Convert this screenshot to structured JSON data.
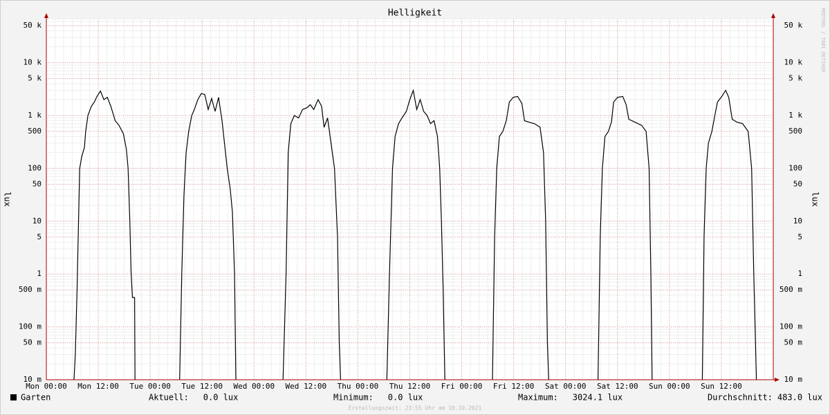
{
  "chart_data": {
    "type": "line",
    "title": "Helligkeit",
    "y_label": "lux",
    "log_scale": true,
    "grid": true,
    "xlim": [
      0,
      168
    ],
    "xticks": [
      {
        "value": 0,
        "label": "Mon 00:00"
      },
      {
        "value": 12,
        "label": "Mon 12:00"
      },
      {
        "value": 24,
        "label": "Tue 00:00"
      },
      {
        "value": 36,
        "label": "Tue 12:00"
      },
      {
        "value": 48,
        "label": "Wed 00:00"
      },
      {
        "value": 60,
        "label": "Wed 12:00"
      },
      {
        "value": 72,
        "label": "Thu 00:00"
      },
      {
        "value": 84,
        "label": "Thu 12:00"
      },
      {
        "value": 96,
        "label": "Fri 00:00"
      },
      {
        "value": 108,
        "label": "Fri 12:00"
      },
      {
        "value": 120,
        "label": "Sat 00:00"
      },
      {
        "value": 132,
        "label": "Sat 12:00"
      },
      {
        "value": 144,
        "label": "Sun 00:00"
      },
      {
        "value": 156,
        "label": "Sun 12:00"
      }
    ],
    "ylim": [
      0.01,
      66000
    ],
    "yticks": [
      {
        "value": 0.01,
        "label": "10 m"
      },
      {
        "value": 0.05,
        "label": "50 m"
      },
      {
        "value": 0.1,
        "label": "100 m"
      },
      {
        "value": 0.5,
        "label": "500 m"
      },
      1,
      5,
      10,
      50,
      100,
      500,
      {
        "value": 1000,
        "label": "1 k"
      },
      {
        "value": 5000,
        "label": "5 k"
      },
      {
        "value": 10000,
        "label": "10 k"
      },
      {
        "value": 50000,
        "label": "50 k"
      }
    ],
    "x": [
      6.4,
      6.7,
      7.1,
      7.7,
      8.2,
      8.8,
      9.1,
      9.6,
      10.4,
      11.1,
      11.7,
      12.5,
      13.3,
      14.1,
      14.9,
      15.9,
      16.8,
      17.8,
      18.5,
      18.9,
      19.3,
      19.6,
      19.9,
      20.4,
      20.5,
      24,
      30.8,
      31.3,
      31.8,
      32.3,
      32.9,
      33.6,
      34.2,
      35.0,
      35.8,
      36.6,
      37.4,
      38.2,
      39.0,
      39.8,
      40.6,
      41.4,
      41.8,
      42.5,
      43.0,
      43.5,
      43.8,
      48,
      54.7,
      55.4,
      55.9,
      56.5,
      57.3,
      58.3,
      59.2,
      60.2,
      61.0,
      61.8,
      62.8,
      63.6,
      64.2,
      65.0,
      65.8,
      66.6,
      67.3,
      67.7,
      68.0,
      72,
      78.7,
      79.3,
      80.0,
      80.6,
      81.4,
      82.2,
      83.2,
      84.0,
      84.8,
      85.6,
      86.4,
      87.2,
      88.0,
      88.8,
      89.6,
      90.4,
      90.9,
      91.3,
      91.7,
      92.1,
      96,
      103.1,
      103.6,
      104.1,
      104.7,
      105.5,
      106.3,
      107.0,
      107.9,
      108.9,
      109.9,
      110.5,
      111.5,
      112.8,
      114.1,
      114.9,
      115.4,
      115.8,
      116.1,
      120,
      127.5,
      128.0,
      128.5,
      129.1,
      129.9,
      130.6,
      131.1,
      132.0,
      133.2,
      134.0,
      134.6,
      136.0,
      137.6,
      138.6,
      139.3,
      139.7,
      140.0,
      144,
      151.6,
      152.0,
      152.5,
      153.0,
      153.8,
      154.5,
      155.1,
      156.1,
      157.0,
      157.7,
      158.5,
      159.6,
      160.9,
      162.2,
      163.0,
      163.5,
      164.1
    ],
    "series": [
      {
        "name": "Garten",
        "color": "#000000",
        "values": [
          0.01,
          0.03,
          0.5,
          100,
          170,
          250,
          500,
          1000,
          1500,
          1800,
          2300,
          2900,
          2000,
          2200,
          1500,
          800,
          650,
          450,
          230,
          100,
          10,
          1,
          0.36,
          0.36,
          0.01,
          null,
          0.01,
          1,
          30,
          200,
          500,
          1000,
          1300,
          2000,
          2600,
          2500,
          1300,
          2100,
          1200,
          2200,
          800,
          200,
          100,
          40,
          15,
          1,
          0.01,
          null,
          0.01,
          1,
          200,
          700,
          1000,
          900,
          1300,
          1400,
          1600,
          1300,
          2000,
          1500,
          600,
          900,
          300,
          100,
          5,
          0.05,
          0.01,
          null,
          0.01,
          1,
          100,
          400,
          700,
          900,
          1200,
          2000,
          3000,
          1300,
          2000,
          1200,
          1000,
          700,
          800,
          400,
          100,
          10,
          0.5,
          0.01,
          null,
          0.01,
          5,
          100,
          400,
          500,
          800,
          1800,
          2200,
          2300,
          1700,
          800,
          750,
          700,
          600,
          200,
          10,
          0.05,
          0.01,
          null,
          0.01,
          5,
          100,
          400,
          500,
          750,
          1800,
          2200,
          2300,
          1600,
          850,
          750,
          650,
          500,
          100,
          1,
          0.01,
          null,
          0.01,
          5,
          100,
          300,
          500,
          1000,
          1800,
          2300,
          3000,
          2200,
          850,
          750,
          700,
          500,
          100,
          1,
          0.01
        ]
      }
    ],
    "legend_stats": [
      {
        "label": "Aktuell:",
        "value": "0.0 lux"
      },
      {
        "label": "Minimum:",
        "value": "0.0 lux"
      },
      {
        "label": "Maximum:",
        "value": "3024.1 lux"
      },
      {
        "label": "Durchschnitt:",
        "value": "483.0 lux"
      }
    ],
    "watermark": "RRDTOOL / TOBI OETIKER",
    "footer": "Erstellungszeit: 23:55 Uhr am 10.10.2021"
  }
}
